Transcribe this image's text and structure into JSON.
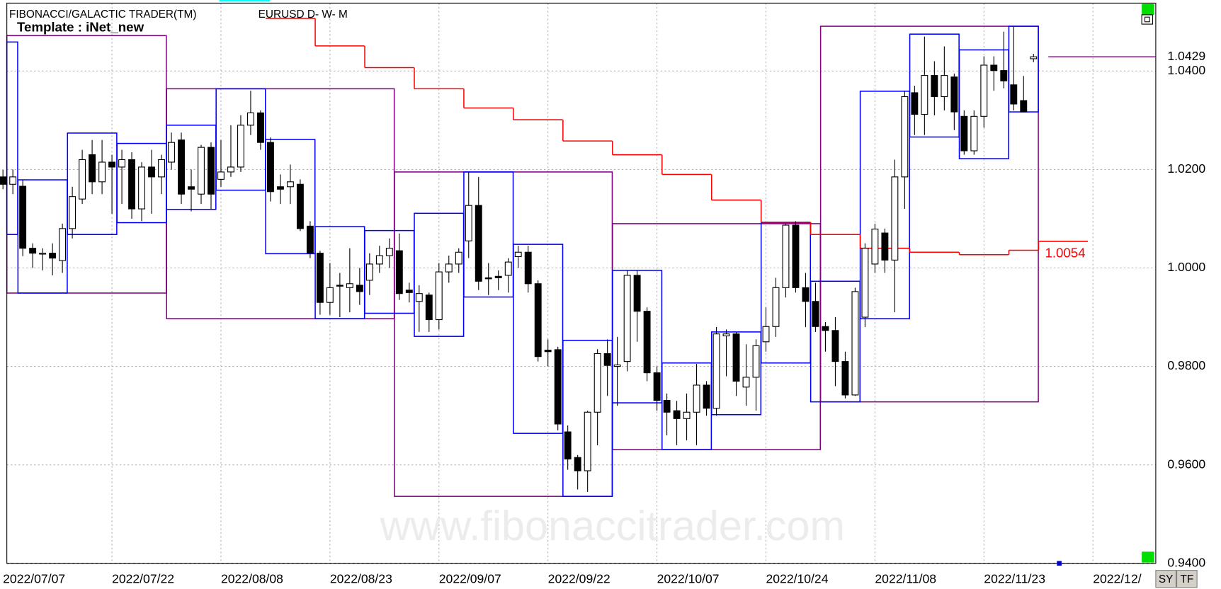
{
  "chart_data": {
    "type": "candlestick",
    "title": "FIBONACCI/GALACTIC TRADER(TM)",
    "subtitle": "EURUSD D- W- M",
    "template": "Template : iNet_new",
    "watermark": "www.fibonaccitrader.com",
    "buttons": [
      "SY",
      "TF"
    ],
    "categories": [
      "2022/07/07",
      null,
      null,
      null,
      null,
      null,
      null,
      null,
      null,
      null,
      null,
      "2022/07/22",
      null,
      null,
      null,
      null,
      null,
      null,
      null,
      null,
      null,
      null,
      "2022/08/08",
      null,
      null,
      null,
      null,
      null,
      null,
      null,
      null,
      null,
      null,
      "2022/08/23",
      null,
      null,
      null,
      null,
      null,
      null,
      null,
      null,
      null,
      null,
      "2022/09/07",
      null,
      null,
      null,
      null,
      null,
      null,
      null,
      null,
      null,
      null,
      "2022/09/22",
      null,
      null,
      null,
      null,
      null,
      null,
      null,
      null,
      null,
      null,
      "2022/10/07",
      null,
      null,
      null,
      null,
      null,
      null,
      null,
      null,
      null,
      null,
      "2022/10/24",
      null,
      null,
      null,
      null,
      null,
      null,
      null,
      null,
      null,
      null,
      "2022/11/08",
      null,
      null,
      null,
      null,
      null,
      null,
      null,
      null,
      null,
      null,
      "2022/11/23",
      null,
      null,
      null,
      null,
      null,
      null,
      null,
      null,
      null,
      null,
      "2022/12/"
    ],
    "open": [
      1.0185,
      1.017,
      1.0166,
      1.004,
      1.003,
      1.003,
      1.0015,
      1.008,
      1.014,
      1.023,
      1.0175,
      1.0215,
      1.0205,
      1.022,
      1.012,
      1.0205,
      1.0185,
      1.0215,
      1.026,
      1.0165,
      1.015,
      1.0245,
      1.018,
      1.0195,
      1.0205,
      1.029,
      1.0315,
      1.0255,
      1.0165,
      1.0165,
      1.017,
      1.0085,
      1.003,
      0.993,
      0.9965,
      0.996,
      0.9965,
      0.9975,
      1.0008,
      1.0025,
      1.0035,
      0.9955,
      0.9932,
      0.9945,
      0.9895,
      0.9992,
      1.0008,
      1.0055,
      1.0127,
      0.998,
      0.9983,
      0.9985,
      1.0023,
      1.0032,
      0.9968,
      0.9833,
      0.9834,
      0.9667,
      0.9615,
      0.9588,
      0.9707,
      0.9826,
      0.98,
      0.981,
      0.9985,
      0.9912,
      0.9787,
      0.9731,
      0.971,
      0.9694,
      0.9707,
      0.9762,
      0.9715,
      0.9862,
      0.9866,
      0.9758,
      0.9778,
      0.985,
      0.9881,
      0.996,
      1.0087,
      0.996,
      0.9932,
      0.9881,
      0.9873,
      0.981,
      0.9742,
      0.99,
      1.0008,
      1.0071,
      1.0016,
      1.0185,
      1.0356,
      1.0312,
      1.0391,
      1.0348,
      1.0388,
      1.0308,
      1.0238,
      1.0308,
      1.0412,
      1.0401,
      1.0372,
      1.034,
      1.0425,
      null,
      null,
      null,
      null,
      null,
      null
    ],
    "high": [
      1.02,
      1.02,
      1.018,
      1.005,
      1.004,
      1.005,
      1.009,
      1.0165,
      1.024,
      1.026,
      1.026,
      1.023,
      1.024,
      1.0235,
      1.0215,
      1.024,
      1.023,
      1.0275,
      1.0275,
      1.02,
      1.025,
      1.0255,
      1.026,
      1.029,
      1.031,
      1.036,
      1.032,
      1.0265,
      1.019,
      1.021,
      1.018,
      1.0095,
      1.0035,
      1.001,
      0.999,
      1.004,
      1.0,
      1.003,
      1.0045,
      1.006,
      1.007,
      0.997,
      0.9965,
      0.995,
      1.001,
      1.0025,
      1.004,
      1.0195,
      1.0185,
      1.001,
      0.9995,
      1.002,
      1.0045,
      1.0045,
      0.9975,
      0.9855,
      0.984,
      0.968,
      0.962,
      0.971,
      0.9835,
      0.9855,
      0.986,
      0.9995,
      0.9995,
      0.992,
      0.98,
      0.9745,
      0.973,
      0.9745,
      0.9805,
      0.977,
      0.988,
      0.9875,
      0.987,
      0.9845,
      0.9855,
      0.992,
      0.998,
      1.009,
      1.0095,
      0.999,
      0.997,
      0.989,
      0.99,
      0.983,
      0.996,
      1.005,
      1.009,
      1.008,
      1.022,
      1.036,
      1.037,
      1.047,
      1.042,
      1.045,
      1.0395,
      1.032,
      1.032,
      1.043,
      1.043,
      1.048,
      1.049,
      1.039,
      1.0435,
      null,
      null,
      null,
      null,
      null,
      null
    ],
    "low": [
      1.016,
      1.015,
      1.0024,
      1.0,
      0.9995,
      0.9985,
      0.999,
      1.006,
      1.013,
      1.015,
      1.015,
      1.011,
      1.013,
      1.01,
      1.0095,
      1.011,
      1.015,
      1.02,
      1.013,
      1.0115,
      1.013,
      1.012,
      1.0165,
      1.0185,
      1.0195,
      1.027,
      1.024,
      1.0135,
      1.013,
      1.013,
      1.0075,
      1.002,
      0.9905,
      0.9905,
      0.99,
      0.991,
      0.9925,
      0.9945,
      0.999,
      1.0,
      0.9935,
      0.993,
      0.987,
      0.987,
      0.9875,
      0.997,
      0.999,
      1.002,
      0.9955,
      0.9945,
      0.9955,
      0.995,
      1.0,
      0.995,
      0.981,
      0.98,
      0.967,
      0.959,
      0.955,
      0.9545,
      0.964,
      0.974,
      0.972,
      0.979,
      0.985,
      0.977,
      0.971,
      0.966,
      0.964,
      0.965,
      0.964,
      0.97,
      0.97,
      0.978,
      0.974,
      0.972,
      0.971,
      0.983,
      0.986,
      0.994,
      0.995,
      0.988,
      0.987,
      0.983,
      0.976,
      0.9735,
      0.974,
      0.988,
      0.999,
      0.999,
      0.991,
      1.012,
      1.027,
      1.027,
      1.031,
      1.032,
      1.028,
      1.023,
      1.023,
      1.0285,
      1.036,
      1.0365,
      1.032,
      1.0317,
      1.0418,
      null,
      null,
      null,
      null,
      null,
      null
    ],
    "close": [
      1.017,
      1.0185,
      1.004,
      1.003,
      1.003,
      1.002,
      1.008,
      1.0145,
      1.022,
      1.0175,
      1.0215,
      1.0205,
      1.022,
      1.012,
      1.0205,
      1.0185,
      1.022,
      1.0255,
      1.015,
      1.016,
      1.0245,
      1.015,
      1.0195,
      1.0205,
      1.029,
      1.0315,
      1.0255,
      1.0155,
      1.016,
      1.0175,
      1.008,
      1.003,
      0.993,
      0.996,
      0.9963,
      0.9968,
      0.9952,
      1.0008,
      1.0025,
      1.004,
      0.9948,
      0.995,
      0.9948,
      0.9895,
      0.9992,
      1.0008,
      1.0032,
      1.0127,
      0.9973,
      0.9978,
      0.998,
      1.0012,
      1.0032,
      0.9968,
      0.982,
      0.983,
      0.9683,
      0.9612,
      0.9588,
      0.9707,
      0.9826,
      0.9802,
      0.9803,
      0.9985,
      0.9912,
      0.9787,
      0.9731,
      0.9707,
      0.9694,
      0.9707,
      0.9762,
      0.9715,
      0.9866,
      0.9866,
      0.977,
      0.9778,
      0.9842,
      0.9881,
      0.996,
      1.0087,
      0.996,
      0.9932,
      0.9881,
      0.9873,
      0.981,
      0.9742,
      0.9952,
      1.004,
      1.0079,
      1.0016,
      1.0185,
      1.0348,
      1.0312,
      1.0391,
      1.0348,
      1.0391,
      1.0317,
      1.0238,
      1.0308,
      1.0412,
      1.0401,
      1.038,
      1.0333,
      1.0317,
      1.0429,
      null,
      null,
      null,
      null,
      null,
      null
    ],
    "up_color": "#ffffff",
    "down_color": "#000000",
    "monthly_boxes": {
      "color": "#800080",
      "boxes": [
        {
          "start": 0,
          "end": 16,
          "top": 1.0472,
          "bottom": 0.9949
        },
        {
          "start": 17,
          "end": 39,
          "top": 1.0364,
          "bottom": 0.9897
        },
        {
          "start": 40,
          "end": 61,
          "top": 1.0195,
          "bottom": 0.9536
        },
        {
          "start": 62,
          "end": 82,
          "top": 1.009,
          "bottom": 0.9631
        },
        {
          "start": 83,
          "end": 104,
          "top": 1.0491,
          "bottom": 0.9728
        }
      ]
    },
    "weekly_boxes": {
      "color": "#0000ff",
      "boxes": [
        {
          "start": 0,
          "end": 1,
          "top": 1.0459,
          "bottom": 1.0068
        },
        {
          "start": 2,
          "end": 6,
          "top": 1.0179,
          "bottom": 0.9949
        },
        {
          "start": 7,
          "end": 11,
          "top": 1.0274,
          "bottom": 1.0068
        },
        {
          "start": 12,
          "end": 16,
          "top": 1.0253,
          "bottom": 1.0092
        },
        {
          "start": 17,
          "end": 21,
          "top": 1.029,
          "bottom": 1.0119
        },
        {
          "start": 22,
          "end": 26,
          "top": 1.0364,
          "bottom": 1.0158
        },
        {
          "start": 27,
          "end": 31,
          "top": 1.0261,
          "bottom": 1.0029
        },
        {
          "start": 32,
          "end": 36,
          "top": 1.0084,
          "bottom": 0.9897
        },
        {
          "start": 37,
          "end": 41,
          "top": 1.0076,
          "bottom": 0.9908
        },
        {
          "start": 42,
          "end": 46,
          "top": 1.0111,
          "bottom": 0.9861
        },
        {
          "start": 47,
          "end": 51,
          "top": 1.0195,
          "bottom": 0.9941
        },
        {
          "start": 52,
          "end": 56,
          "top": 1.0048,
          "bottom": 0.9664
        },
        {
          "start": 57,
          "end": 61,
          "top": 0.9853,
          "bottom": 0.9536
        },
        {
          "start": 62,
          "end": 66,
          "top": 0.9995,
          "bottom": 0.9726
        },
        {
          "start": 67,
          "end": 71,
          "top": 0.9807,
          "bottom": 0.9631
        },
        {
          "start": 72,
          "end": 76,
          "top": 0.987,
          "bottom": 0.9702
        },
        {
          "start": 77,
          "end": 81,
          "top": 1.0092,
          "bottom": 0.9807
        },
        {
          "start": 82,
          "end": 86,
          "top": 0.9973,
          "bottom": 0.9728
        },
        {
          "start": 87,
          "end": 91,
          "top": 1.0359,
          "bottom": 0.9897
        },
        {
          "start": 92,
          "end": 96,
          "top": 1.0475,
          "bottom": 1.0266
        },
        {
          "start": 97,
          "end": 101,
          "top": 1.0443,
          "bottom": 1.0222
        },
        {
          "start": 102,
          "end": 104,
          "top": 1.0491,
          "bottom": 1.0317
        }
      ]
    },
    "step_line": {
      "color": "#ff0000",
      "steps": [
        {
          "start": 27,
          "end": 31,
          "value": 1.0507
        },
        {
          "start": 32,
          "end": 36,
          "value": 1.0451
        },
        {
          "start": 37,
          "end": 41,
          "value": 1.0407
        },
        {
          "start": 42,
          "end": 46,
          "value": 1.0364
        },
        {
          "start": 47,
          "end": 51,
          "value": 1.0325
        },
        {
          "start": 52,
          "end": 56,
          "value": 1.0301
        },
        {
          "start": 57,
          "end": 61,
          "value": 1.0258
        },
        {
          "start": 62,
          "end": 66,
          "value": 1.023
        },
        {
          "start": 67,
          "end": 71,
          "value": 1.019
        },
        {
          "start": 72,
          "end": 76,
          "value": 1.0138
        },
        {
          "start": 77,
          "end": 81,
          "value": 1.0093
        },
        {
          "start": 82,
          "end": 86,
          "value": 1.0068
        },
        {
          "start": 87,
          "end": 91,
          "value": 1.004
        },
        {
          "start": 92,
          "end": 96,
          "value": 1.0032
        },
        {
          "start": 97,
          "end": 101,
          "value": 1.0027
        },
        {
          "start": 102,
          "end": 104,
          "value": 1.0036
        },
        {
          "start": 105,
          "end": 109,
          "value": 1.0054
        }
      ]
    },
    "last_price": 1.0429,
    "ylim": [
      0.94,
      1.0538
    ],
    "yticks": [
      {
        "value": 0.94,
        "label": "0.9400"
      },
      {
        "value": 0.96,
        "label": "0.9600"
      },
      {
        "value": 0.98,
        "label": "0.9800"
      },
      {
        "value": 1.0,
        "label": "1.0000"
      },
      {
        "value": 1.02,
        "label": "1.0200"
      },
      {
        "value": 1.04,
        "label": "1.0400"
      }
    ],
    "grid": true
  }
}
